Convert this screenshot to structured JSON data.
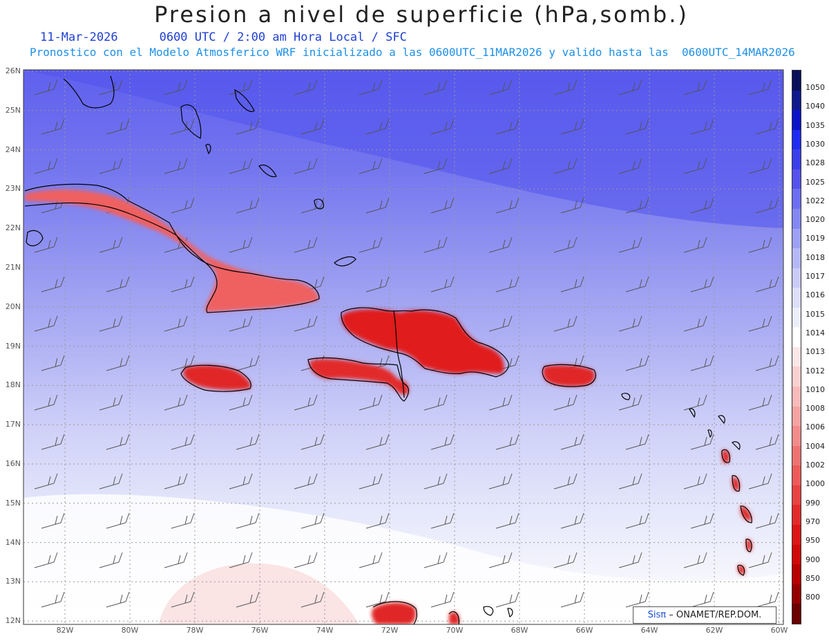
{
  "header": {
    "title": "Presion a nivel de superficie (hPa,somb.)",
    "date": "11-Mar-2026",
    "valid_time": "0600 UTC / 2:00 am Hora Local / SFC",
    "forecast_note": "Pronostico con el Modelo Atmosferico WRF inicializado a las 0600UTC_11MAR2026 y valido hasta las  0600UTC_14MAR2026"
  },
  "axes": {
    "latitude_labels": [
      "26N",
      "25N",
      "24N",
      "23N",
      "22N",
      "21N",
      "20N",
      "19N",
      "18N",
      "17N",
      "16N",
      "15N",
      "14N",
      "13N",
      "12N"
    ],
    "longitude_labels": [
      "82W",
      "80W",
      "78W",
      "76W",
      "74W",
      "72W",
      "70W",
      "68W",
      "66W",
      "64W",
      "62W",
      "60W"
    ]
  },
  "colorbar": {
    "levels": [
      "1050",
      "1040",
      "1035",
      "1030",
      "1028",
      "1025",
      "1022",
      "1020",
      "1019",
      "1018",
      "1017",
      "1016",
      "1015",
      "1014",
      "1013",
      "1012",
      "1010",
      "1008",
      "1006",
      "1004",
      "1002",
      "1000",
      "990",
      "970",
      "950",
      "900",
      "850",
      "800"
    ],
    "colors": [
      "#0a0f5a",
      "#101a8c",
      "#0b14c8",
      "#1f2bf0",
      "#3b3fea",
      "#5553ec",
      "#6d6ef0",
      "#8487f2",
      "#9ea0f4",
      "#b5b8f6",
      "#caccf8",
      "#dcdffa",
      "#eceefc",
      "#ffffff",
      "#fde6e6",
      "#fbd0d0",
      "#f8baba",
      "#f5a3a3",
      "#f28c8c",
      "#ef7272",
      "#ec5a5a",
      "#e84242",
      "#e22a2a",
      "#dc1515",
      "#d00808",
      "#b80000",
      "#940000",
      "#6a0000"
    ]
  },
  "credit": {
    "sis_label": "Sisπ",
    "org_label": "– ONAMET/REP.DOM."
  },
  "map_layers": [
    "pressure-shading",
    "coastlines",
    "wind-barbs",
    "lat-lon-grid"
  ]
}
